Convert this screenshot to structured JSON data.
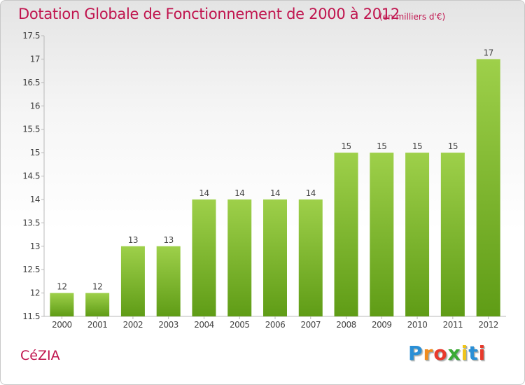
{
  "chart_data": {
    "type": "bar",
    "title": "Dotation Globale de Fonctionnement de 2000 à 2012",
    "subtitle": "(en milliers d'€)",
    "categories": [
      "2000",
      "2001",
      "2002",
      "2003",
      "2004",
      "2005",
      "2006",
      "2007",
      "2008",
      "2009",
      "2010",
      "2011",
      "2012"
    ],
    "values": [
      12,
      12,
      13,
      13,
      14,
      14,
      14,
      14,
      15,
      15,
      15,
      15,
      17
    ],
    "ylim": [
      11.5,
      17.5
    ],
    "yticks": [
      "11.5",
      "12",
      "12.5",
      "13",
      "13.5",
      "14",
      "14.5",
      "15",
      "15.5",
      "16",
      "16.5",
      "17",
      "17.5"
    ],
    "xlabel": "",
    "ylabel": "",
    "bar_color_top": "#9ed04a",
    "bar_color_bottom": "#5f9c16",
    "grid": false
  },
  "commune": "CéZIA",
  "logo": {
    "letters": [
      "P",
      "r",
      "o",
      "x",
      "i",
      "t",
      "i"
    ],
    "colors": [
      "#2a8fd6",
      "#f08c1e",
      "#e83a2c",
      "#3aaa35",
      "#f0c419",
      "#2a8fd6",
      "#e83a2c"
    ]
  },
  "accent_color": "#c0144e"
}
